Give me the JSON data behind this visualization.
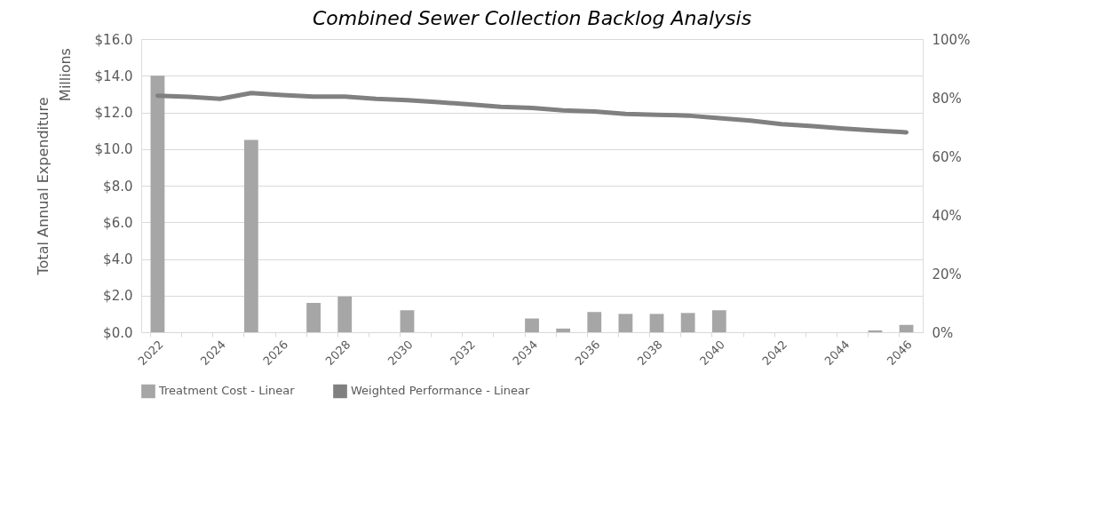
{
  "chart_data": {
    "type": "bar",
    "title": "Combined Sewer Collection Backlog Analysis",
    "ylabel": "Total Annual Expenditure",
    "annotations": [
      "Millions"
    ],
    "categories": [
      "2022",
      null,
      "2024",
      null,
      "2026",
      null,
      "2028",
      null,
      "2030",
      null,
      "2032",
      null,
      "2034",
      null,
      "2036",
      null,
      "2038",
      null,
      "2040",
      null,
      "2042",
      null,
      "2044",
      null,
      "2046"
    ],
    "series": [
      {
        "name": "Treatment Cost - Linear",
        "color": "#a6a6a6",
        "values": [
          14.0,
          0,
          0,
          10.5,
          0,
          1.6,
          1.95,
          0,
          1.2,
          0,
          0,
          0,
          0.75,
          0.2,
          1.1,
          1.0,
          1.0,
          1.05,
          1.2,
          0,
          0,
          0,
          0,
          0.1,
          0.4
        ]
      },
      {
        "name": "Weighted Performance - Linear",
        "type": "line",
        "axis": "y2",
        "color": "#808080",
        "values": [
          80.7,
          80.3,
          79.6,
          81.6,
          80.9,
          80.4,
          80.4,
          79.6,
          79.2,
          78.5,
          77.7,
          76.9,
          76.5,
          75.7,
          75.3,
          74.5,
          74.2,
          73.9,
          73.0,
          72.2,
          71.0,
          70.3,
          69.5,
          68.8,
          68.2
        ]
      }
    ],
    "ylim": [
      0,
      16
    ],
    "yticks": [
      {
        "value": 0,
        "label": "$0.0"
      },
      {
        "value": 2,
        "label": "$2.0"
      },
      {
        "value": 4,
        "label": "$4.0"
      },
      {
        "value": 6,
        "label": "$6.0"
      },
      {
        "value": 8,
        "label": "$8.0"
      },
      {
        "value": 10,
        "label": "$10.0"
      },
      {
        "value": 12,
        "label": "$12.0"
      },
      {
        "value": 14,
        "label": "$14.0"
      },
      {
        "value": 16,
        "label": "$16.0"
      }
    ],
    "y2lim": [
      0,
      100
    ],
    "y2ticks": [
      {
        "value": 0,
        "label": "0%"
      },
      {
        "value": 20,
        "label": "20%"
      },
      {
        "value": 40,
        "label": "40%"
      },
      {
        "value": 60,
        "label": "60%"
      },
      {
        "value": 80,
        "label": "80%"
      },
      {
        "value": 100,
        "label": "100%"
      }
    ],
    "grid": "y",
    "legend": "bottom"
  }
}
